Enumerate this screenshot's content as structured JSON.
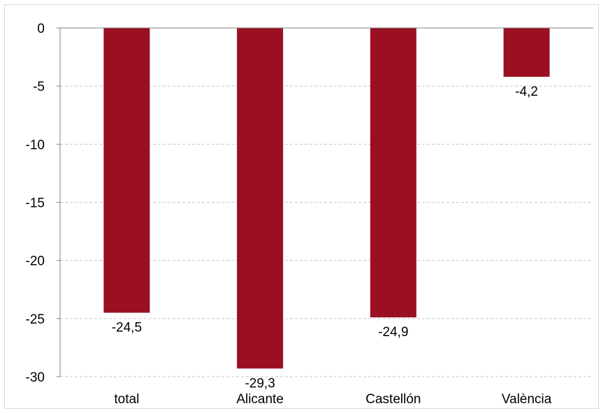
{
  "chart_data": {
    "type": "bar",
    "categories": [
      "total",
      "Alicante",
      "Castellón",
      "València"
    ],
    "values": [
      -24.5,
      -29.3,
      -24.9,
      -4.2
    ],
    "data_labels": [
      "-24,5",
      "-29,3",
      "-24,9",
      "-4,2"
    ],
    "yticks": [
      0,
      -5,
      -10,
      -15,
      -20,
      -25,
      -30
    ],
    "ytick_labels": [
      "0",
      "-5",
      "-10",
      "-15",
      "-20",
      "-25",
      "-30"
    ],
    "ylim": [
      -30,
      0
    ],
    "title": "",
    "xlabel": "",
    "ylabel": "",
    "grid": true,
    "legend": "none",
    "bar_color": "#9b0f22"
  }
}
